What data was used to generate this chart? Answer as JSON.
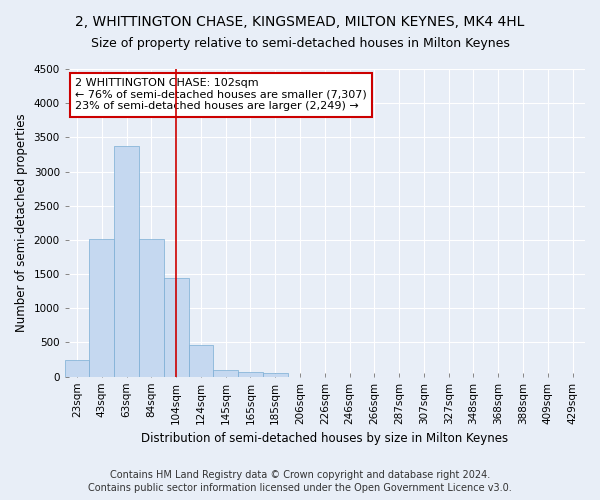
{
  "title": "2, WHITTINGTON CHASE, KINGSMEAD, MILTON KEYNES, MK4 4HL",
  "subtitle": "Size of property relative to semi-detached houses in Milton Keynes",
  "xlabel": "Distribution of semi-detached houses by size in Milton Keynes",
  "ylabel": "Number of semi-detached properties",
  "categories": [
    "23sqm",
    "43sqm",
    "63sqm",
    "84sqm",
    "104sqm",
    "124sqm",
    "145sqm",
    "165sqm",
    "185sqm",
    "206sqm",
    "226sqm",
    "246sqm",
    "266sqm",
    "287sqm",
    "307sqm",
    "327sqm",
    "348sqm",
    "368sqm",
    "388sqm",
    "409sqm",
    "429sqm"
  ],
  "values": [
    250,
    2020,
    3380,
    2020,
    1450,
    470,
    100,
    70,
    50,
    0,
    0,
    0,
    0,
    0,
    0,
    0,
    0,
    0,
    0,
    0,
    0
  ],
  "bar_color": "#c5d8f0",
  "bar_edge_color": "#7aadd4",
  "vline_x_index": 4,
  "vline_color": "#cc0000",
  "annotation_text": "2 WHITTINGTON CHASE: 102sqm\n← 76% of semi-detached houses are smaller (7,307)\n23% of semi-detached houses are larger (2,249) →",
  "annotation_box_color": "#ffffff",
  "annotation_box_edge_color": "#cc0000",
  "ylim": [
    0,
    4500
  ],
  "yticks": [
    0,
    500,
    1000,
    1500,
    2000,
    2500,
    3000,
    3500,
    4000,
    4500
  ],
  "footer1": "Contains HM Land Registry data © Crown copyright and database right 2024.",
  "footer2": "Contains public sector information licensed under the Open Government Licence v3.0.",
  "bg_color": "#e8eef7",
  "plot_bg_color": "#e8eef7",
  "grid_color": "#ffffff",
  "title_fontsize": 10,
  "subtitle_fontsize": 9,
  "axis_label_fontsize": 8.5,
  "tick_fontsize": 7.5,
  "annotation_fontsize": 8,
  "footer_fontsize": 7
}
